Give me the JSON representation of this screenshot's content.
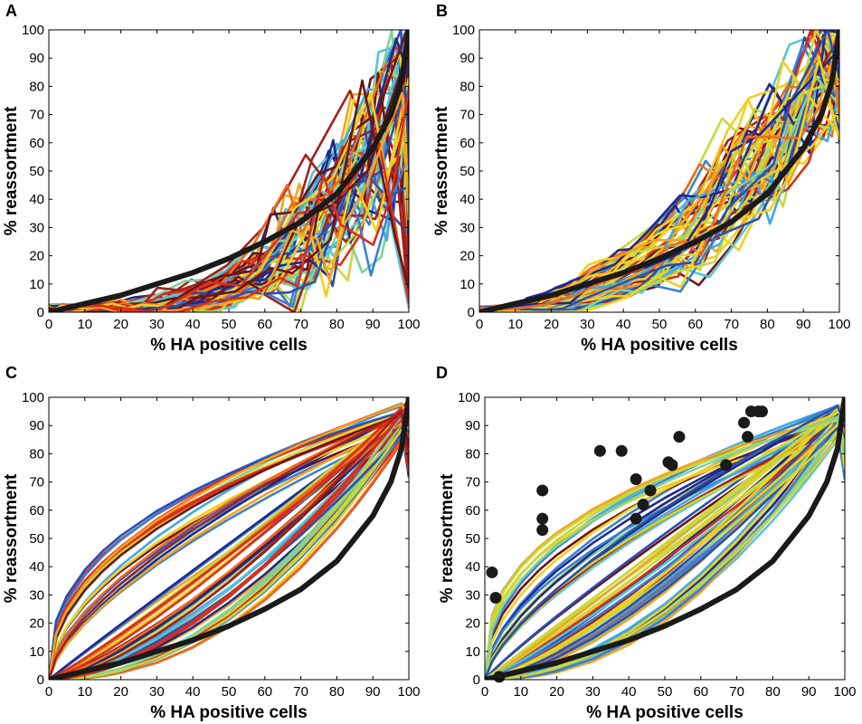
{
  "figure": {
    "colors": {
      "reference_curve": "#1a1a1a",
      "points": "#1a1a1a",
      "palette": [
        "#1f2a8a",
        "#2c4fb0",
        "#3b7fd4",
        "#3fa9e6",
        "#54c6d6",
        "#7ed39a",
        "#c8d83a",
        "#f2d01e",
        "#f7a21b",
        "#f06a1c",
        "#dc2e1a",
        "#a51f1f",
        "#6e1414"
      ]
    }
  },
  "chart_data": [
    {
      "panel": "A",
      "type": "line",
      "xlabel": "% HA positive cells",
      "ylabel": "% reassortment",
      "xlim": [
        0,
        100
      ],
      "ylim": [
        0,
        100
      ],
      "xticks": [
        "0",
        "10",
        "20",
        "30",
        "40",
        "50",
        "60",
        "70",
        "80",
        "90",
        "100"
      ],
      "yticks": [
        "0",
        "10",
        "20",
        "30",
        "40",
        "50",
        "60",
        "70",
        "80",
        "90",
        "100"
      ],
      "reference_curve": {
        "x": [
          0,
          10,
          20,
          30,
          40,
          50,
          60,
          70,
          80,
          90,
          95,
          98,
          100
        ],
        "y": [
          0,
          3,
          6,
          10,
          14,
          19,
          25,
          32,
          42,
          58,
          70,
          82,
          100
        ]
      },
      "series_style": "noisy",
      "series_count": 60
    },
    {
      "panel": "B",
      "type": "line",
      "xlabel": "% HA positive cells",
      "ylabel": "% reassortment",
      "xlim": [
        0,
        100
      ],
      "ylim": [
        0,
        100
      ],
      "xticks": [
        "0",
        "10",
        "20",
        "30",
        "40",
        "50",
        "60",
        "70",
        "80",
        "90",
        "100"
      ],
      "yticks": [
        "0",
        "10",
        "20",
        "30",
        "40",
        "50",
        "60",
        "70",
        "80",
        "90",
        "100"
      ],
      "reference_curve": {
        "x": [
          0,
          10,
          20,
          30,
          40,
          50,
          60,
          70,
          80,
          90,
          95,
          98,
          100
        ],
        "y": [
          0,
          3,
          6,
          10,
          14,
          19,
          25,
          32,
          42,
          58,
          70,
          82,
          100
        ]
      },
      "series_style": "moderate",
      "series_count": 55
    },
    {
      "panel": "C",
      "type": "line",
      "xlabel": "% HA positive cells",
      "ylabel": "% reassortment",
      "xlim": [
        0,
        100
      ],
      "ylim": [
        0,
        100
      ],
      "xticks": [
        "0",
        "10",
        "20",
        "30",
        "40",
        "50",
        "60",
        "70",
        "80",
        "90",
        "100"
      ],
      "yticks": [
        "0",
        "10",
        "20",
        "30",
        "40",
        "50",
        "60",
        "70",
        "80",
        "90",
        "100"
      ],
      "reference_curve": {
        "x": [
          0,
          10,
          20,
          30,
          40,
          50,
          60,
          70,
          80,
          90,
          95,
          98,
          100
        ],
        "y": [
          0,
          3,
          6,
          10,
          14,
          19,
          25,
          32,
          42,
          58,
          70,
          82,
          100
        ]
      },
      "series_style": "smooth",
      "series_count": 70
    },
    {
      "panel": "D",
      "type": "scatter",
      "xlabel": "% HA positive cells",
      "ylabel": "% reassortment",
      "xlim": [
        0,
        100
      ],
      "ylim": [
        0,
        100
      ],
      "xticks": [
        "0",
        "10",
        "20",
        "30",
        "40",
        "50",
        "60",
        "70",
        "80",
        "90",
        "100"
      ],
      "yticks": [
        "0",
        "10",
        "20",
        "30",
        "40",
        "50",
        "60",
        "70",
        "80",
        "90",
        "100"
      ],
      "reference_curve": {
        "x": [
          0,
          10,
          20,
          30,
          40,
          50,
          60,
          70,
          80,
          90,
          95,
          98,
          100
        ],
        "y": [
          0,
          3,
          6,
          10,
          14,
          19,
          25,
          32,
          42,
          58,
          70,
          82,
          100
        ]
      },
      "series_style": "smooth",
      "series_count": 70,
      "points": {
        "x": [
          2,
          3,
          4,
          16,
          16,
          16,
          32,
          38,
          42,
          42,
          44,
          46,
          51,
          52,
          54,
          67,
          72,
          73,
          74,
          76,
          77
        ],
        "y": [
          38,
          29,
          1,
          67,
          57,
          53,
          81,
          81,
          71,
          57,
          62,
          67,
          77,
          76,
          86,
          76,
          91,
          86,
          95,
          95,
          95
        ]
      }
    }
  ]
}
